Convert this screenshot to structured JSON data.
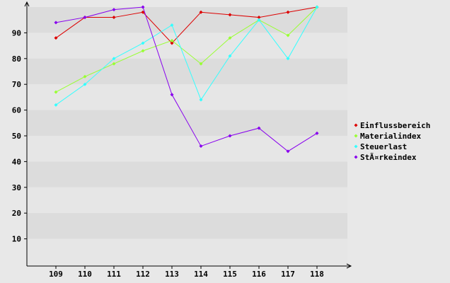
{
  "chart_data": {
    "type": "line",
    "title": "",
    "xlabel": "",
    "ylabel": "",
    "categories": [
      "109",
      "110",
      "111",
      "112",
      "113",
      "114",
      "115",
      "116",
      "117",
      "118"
    ],
    "y_ticks": [
      "10",
      "20",
      "30",
      "40",
      "50",
      "60",
      "70",
      "80",
      "90"
    ],
    "ylim": [
      0,
      100
    ],
    "grid": "horizontal alternating bands",
    "legend_position": "right",
    "series": [
      {
        "name": "Einflussbereich",
        "color": "#dd0000",
        "values": [
          88,
          96,
          96,
          98,
          86,
          98,
          97,
          96,
          98,
          100
        ]
      },
      {
        "name": "Materialindex",
        "color": "#99ff33",
        "values": [
          67,
          73,
          78,
          83,
          87,
          78,
          88,
          95,
          89,
          100
        ]
      },
      {
        "name": "Steuerlast",
        "color": "#33ffff",
        "values": [
          62,
          70,
          80,
          86,
          93,
          64,
          81,
          95,
          80,
          100
        ]
      },
      {
        "name": "StÃ¤rkeindex",
        "color": "#8800ee",
        "values": [
          94,
          96,
          99,
          100,
          66,
          46,
          50,
          53,
          44,
          51
        ]
      }
    ]
  }
}
